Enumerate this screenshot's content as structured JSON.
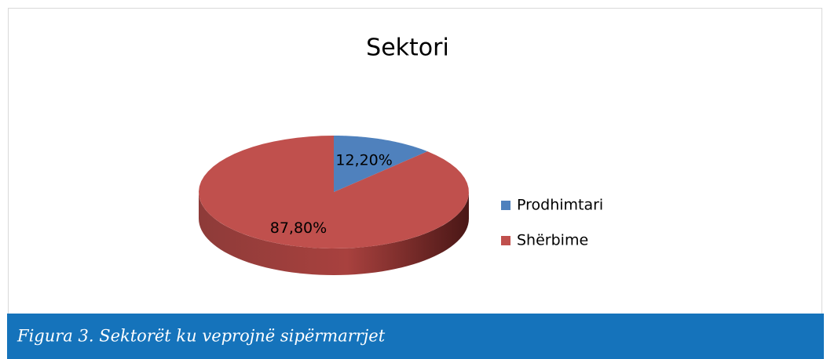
{
  "chart_data": {
    "type": "pie3d",
    "title": "Sektori",
    "categories": [
      "Prodhimtari",
      "Shërbime"
    ],
    "values": [
      12.2,
      87.8
    ],
    "value_labels": [
      "12,20%",
      "87,80%"
    ],
    "colors": [
      "#4f81bd",
      "#c0504d"
    ],
    "legend": "right",
    "caption": "Figura 3. Sektorët ku veprojnë sipërmarrjet"
  }
}
